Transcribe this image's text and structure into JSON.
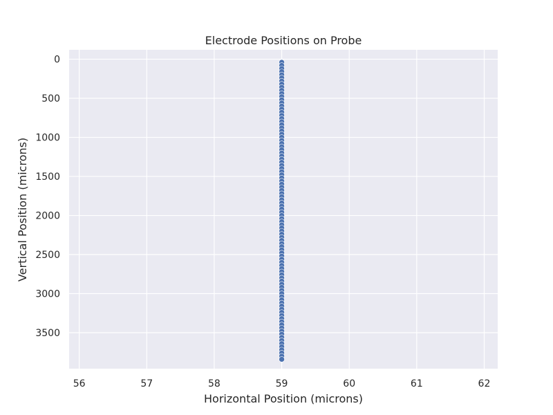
{
  "chart_data": {
    "type": "scatter",
    "title": "Electrode Positions on Probe",
    "xlabel": "Horizontal Position (microns)",
    "ylabel": "Vertical Position (microns)",
    "xlim": [
      55.85,
      62.2
    ],
    "ylim": [
      3960,
      -120
    ],
    "y_inverted": true,
    "xticks": [
      56,
      57,
      58,
      59,
      60,
      61,
      62
    ],
    "yticks": [
      0,
      500,
      1000,
      1500,
      2000,
      2500,
      3000,
      3500
    ],
    "grid": true,
    "series": [
      {
        "x_constant": 59,
        "y_start": 40,
        "y_step": 40,
        "count": 96
      }
    ],
    "colors": {
      "background": "#eaeaf2",
      "grid": "#ffffff",
      "marker": "#4c72b0",
      "marker_edge": "#ffffff"
    }
  }
}
